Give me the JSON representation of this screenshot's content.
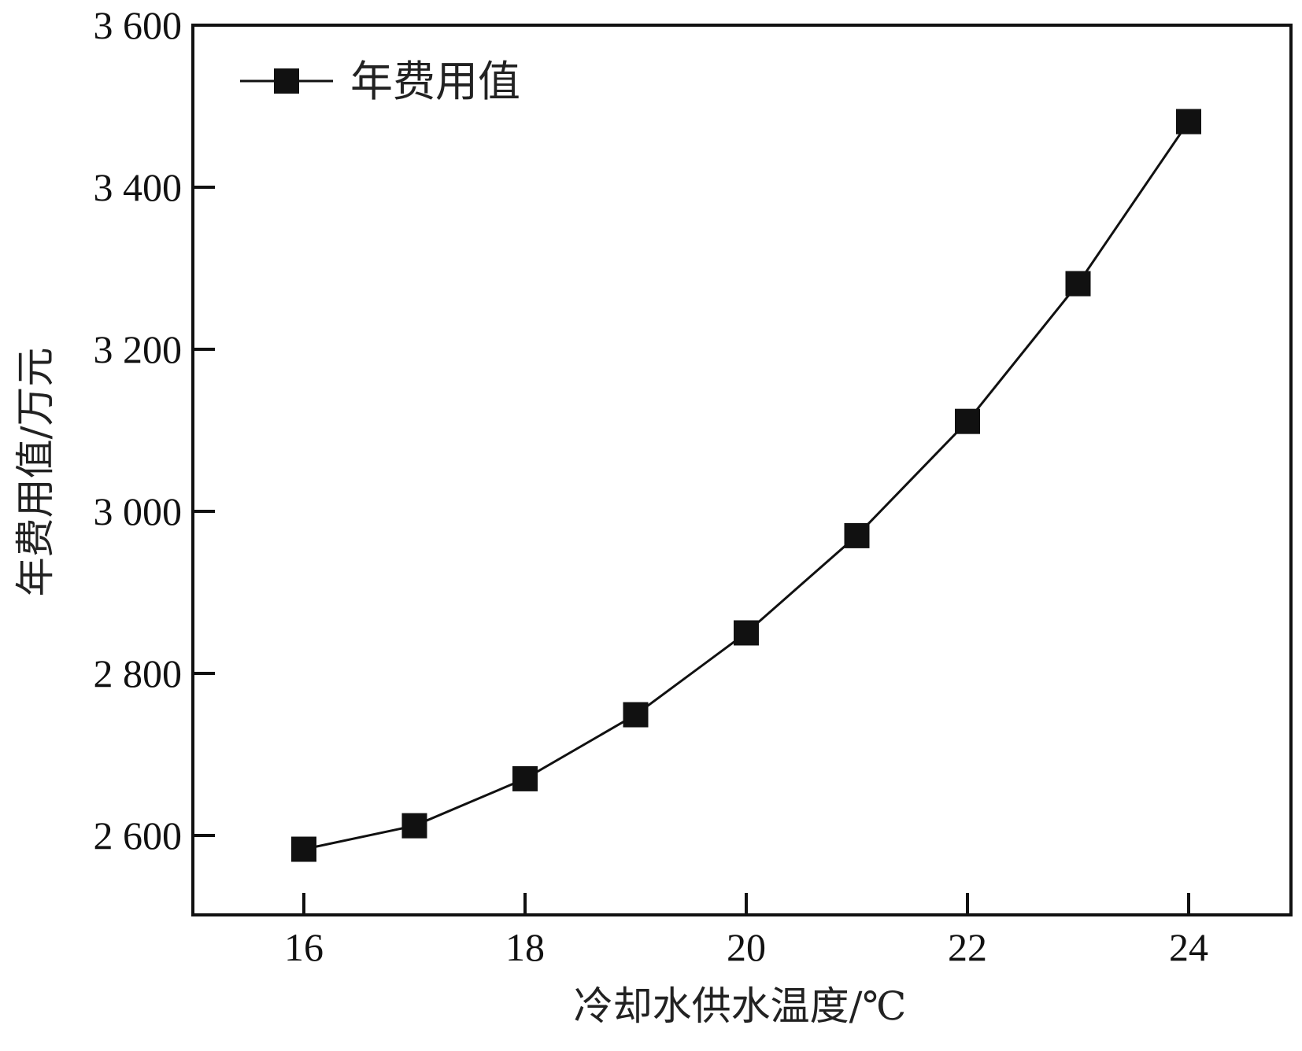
{
  "chart_data": {
    "type": "line",
    "title": "",
    "xlabel": "冷却水供水温度/℃",
    "ylabel": "年费用值/万元",
    "xlim": [
      15,
      25
    ],
    "ylim": [
      2500,
      3600
    ],
    "xticks": [
      16,
      18,
      20,
      22,
      24
    ],
    "xtick_labels": [
      "16",
      "18",
      "20",
      "22",
      "24"
    ],
    "yticks": [
      2600,
      2800,
      3000,
      3200,
      3400,
      3600
    ],
    "ytick_labels": [
      "2 600",
      "2 800",
      "3 000",
      "3 200",
      "3 400",
      "3 600"
    ],
    "grid": false,
    "legend_position": "top-left",
    "series": [
      {
        "name": "年费用值",
        "marker": "square",
        "color": "#111111",
        "x": [
          16,
          17,
          18,
          19,
          20,
          21,
          22,
          23,
          24
        ],
        "y": [
          2583,
          2612,
          2670,
          2749,
          2850,
          2970,
          3111,
          3281,
          3481
        ]
      }
    ]
  }
}
